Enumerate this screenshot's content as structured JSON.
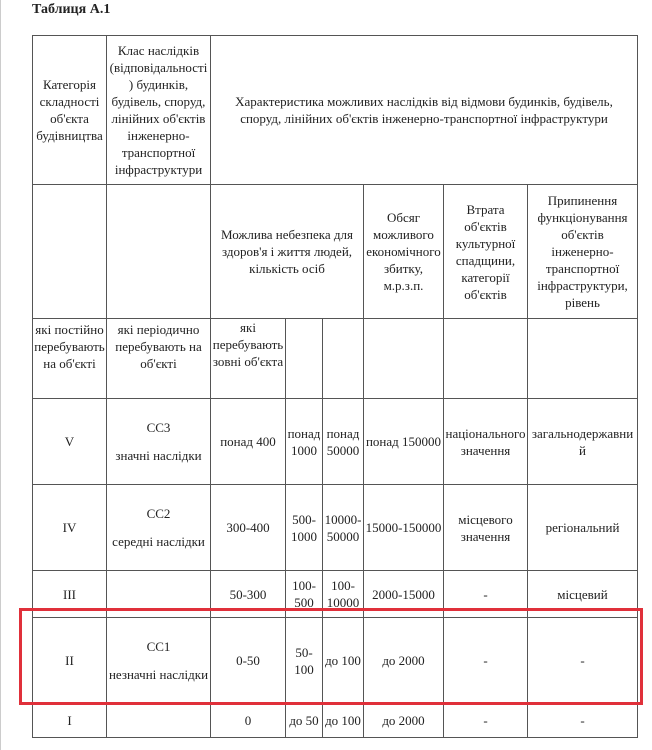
{
  "title": "Таблиця А.1",
  "header": {
    "category": "Категорія складності об'єкта будівництва",
    "class": "Клас наслідків (відповідальності) будинків, будівель, споруд, лінійних об'єктів інженерно-транспортної інфраструктури",
    "characteristics": "Характеристика можливих наслідків від відмови будинків, будівель, споруд, лінійних об'єктів інженерно-транспортної інфраструктури",
    "danger": "Можлива небезпека для здоров'я і життя людей, кількість осіб",
    "economic": "Обсяг можливого економічного збитку, м.р.з.п.",
    "heritage": "Втрата об'єктів культурної спадщини, категорії об'єктів",
    "infrastructure": "Припинення функціонування об'єктів інженерно-транспортної інфраструктури, рівень",
    "permanent": "які постійно перебувають на об'єкті",
    "periodic": "які періодично перебувають на об'єкті",
    "outside": "які перебувають зовні об'єкта"
  },
  "rows": [
    {
      "category": "V",
      "class_code": "CC3",
      "class_name": "значні наслідки",
      "permanent": "понад 400",
      "periodic": "понад 1000",
      "outside": "понад 50000",
      "economic": "понад 150000",
      "heritage": "національного значення",
      "infrastructure": "загальнодержавний"
    },
    {
      "category": "IV",
      "class_code": "CC2",
      "class_name": "середні наслідки",
      "permanent": "300-400",
      "periodic": "500-1000",
      "outside": "10000-50000",
      "economic": "15000-150000",
      "heritage": "місцевого значення",
      "infrastructure": "регіональний"
    },
    {
      "category": "III",
      "class_code": "",
      "class_name": "",
      "permanent": "50-300",
      "periodic": "100-500",
      "outside": "100-10000",
      "economic": "2000-15000",
      "heritage": "-",
      "infrastructure": "місцевий"
    },
    {
      "category": "II",
      "class_code": "CC1",
      "class_name": "незначні наслідки",
      "permanent": "0-50",
      "periodic": "50-100",
      "outside": "до 100",
      "economic": "до 2000",
      "heritage": "-",
      "infrastructure": "-"
    },
    {
      "category": "I",
      "class_code": "",
      "class_name": "",
      "permanent": "0",
      "periodic": "до 50",
      "outside": "до 100",
      "economic": "до 2000",
      "heritage": "-",
      "infrastructure": "-"
    }
  ],
  "highlight_color": "#e0303a"
}
